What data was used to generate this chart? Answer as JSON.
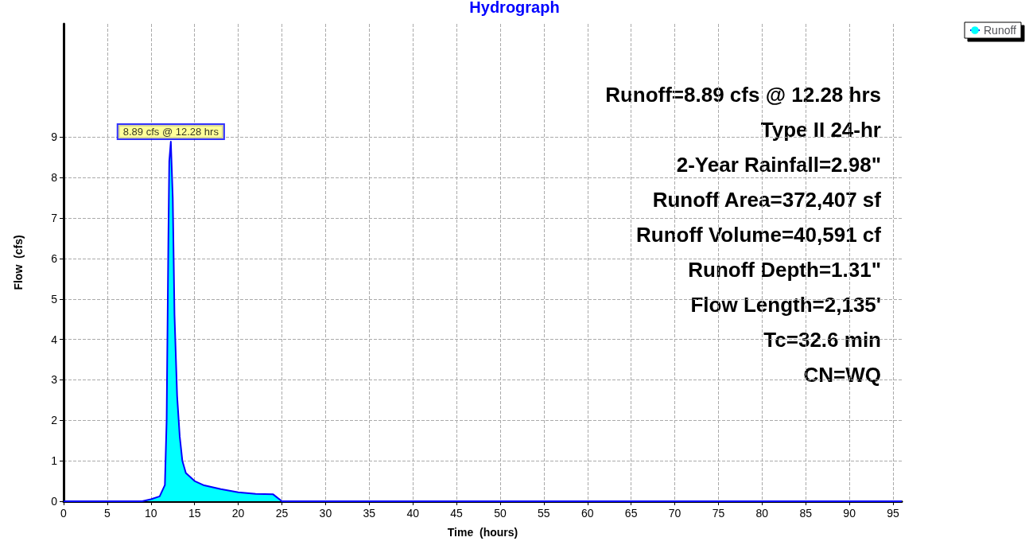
{
  "chart_data": {
    "type": "area",
    "title": "Hydrograph",
    "xlabel": "Time  (hours)",
    "ylabel": "Flow  (cfs)",
    "x": [
      0,
      5,
      9,
      10,
      11,
      11.6,
      11.8,
      12.0,
      12.1,
      12.28,
      12.5,
      12.7,
      13.0,
      13.3,
      13.6,
      14.0,
      15,
      16,
      18,
      20,
      22,
      24,
      25,
      96
    ],
    "series": [
      {
        "name": "Runoff",
        "color": "#00ffff",
        "values": [
          0,
          0,
          0,
          0.05,
          0.12,
          0.4,
          2.0,
          6.5,
          8.4,
          8.89,
          7.5,
          4.6,
          2.6,
          1.6,
          1.0,
          0.7,
          0.5,
          0.4,
          0.3,
          0.22,
          0.18,
          0.17,
          0,
          0
        ]
      }
    ],
    "xlim": [
      0,
      96
    ],
    "xticks": [
      0,
      5,
      10,
      15,
      20,
      25,
      30,
      35,
      40,
      45,
      50,
      55,
      60,
      65,
      70,
      75,
      80,
      85,
      90,
      95
    ],
    "ylim": [
      0,
      11.8
    ],
    "yticks": [
      0,
      1,
      2,
      3,
      4,
      5,
      6,
      7,
      8,
      9
    ],
    "grid": true,
    "legend": "top right",
    "marker": "none",
    "line_style": "solid",
    "annotations": [
      {
        "text": "8.89 cfs @ 12.28 hrs",
        "x": 12.28,
        "y": 8.89
      },
      "Runoff=8.89 cfs @ 12.28 hrs",
      "Type II 24-hr",
      "2-Year Rainfall=2.98\"",
      "Runoff Area=372,407 sf",
      "Runoff Volume=40,591 cf",
      "Runoff Depth=1.31\"",
      "Flow Length=2,135'",
      "Tc=32.6 min",
      "CN=WQ"
    ]
  }
}
